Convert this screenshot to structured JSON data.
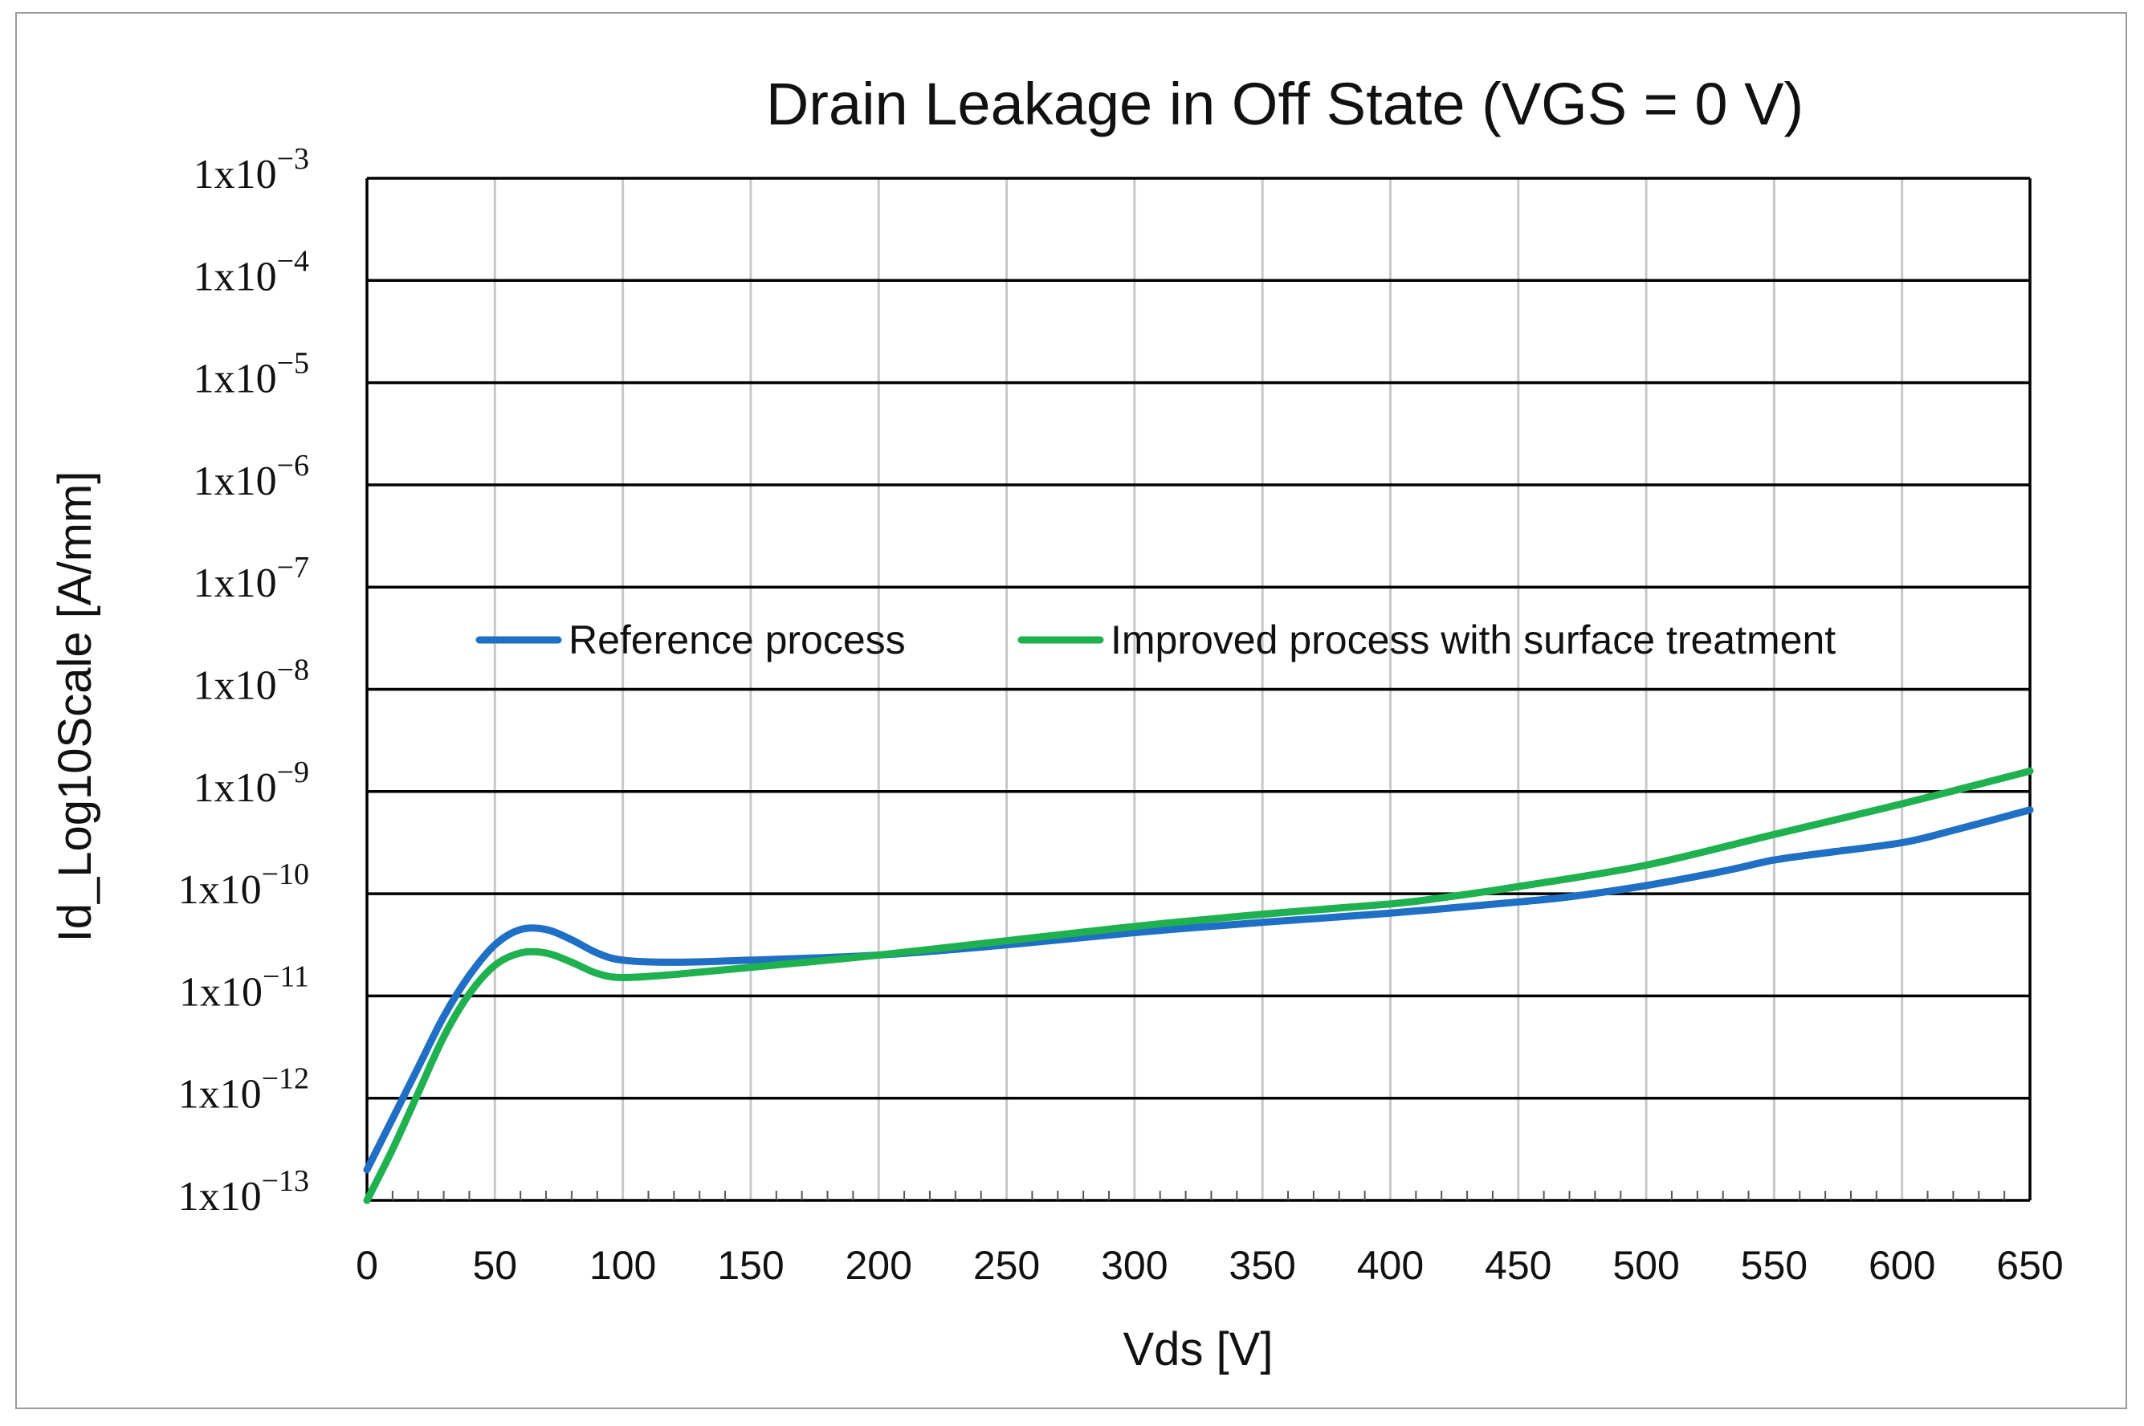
{
  "chart_data": {
    "type": "line",
    "title": "Drain Leakage in Off State (VGS = 0 V)",
    "xlabel": "Vds [V]",
    "ylabel": "Id_Log10Scale [A/mm]",
    "y_scale": "log10",
    "xlim": [
      0,
      650
    ],
    "ylim_exponent": [
      -13,
      -3
    ],
    "x_ticks": [
      0,
      50,
      100,
      150,
      200,
      250,
      300,
      350,
      400,
      450,
      500,
      550,
      600,
      650
    ],
    "y_tick_labels": [
      {
        "base": "1x10",
        "exp": "−13",
        "value_exponent": -13
      },
      {
        "base": "1x10",
        "exp": "−12",
        "value_exponent": -12
      },
      {
        "base": "1x10",
        "exp": "−11",
        "value_exponent": -11
      },
      {
        "base": "1x10",
        "exp": "−10",
        "value_exponent": -10
      },
      {
        "base": "1x10",
        "exp": "−9",
        "value_exponent": -9
      },
      {
        "base": "1x10",
        "exp": "−8",
        "value_exponent": -8
      },
      {
        "base": "1x10",
        "exp": "−7",
        "value_exponent": -7
      },
      {
        "base": "1x10",
        "exp": "−6",
        "value_exponent": -6
      },
      {
        "base": "1x10",
        "exp": "−5",
        "value_exponent": -5
      },
      {
        "base": "1x10",
        "exp": "−4",
        "value_exponent": -4
      },
      {
        "base": "1x10",
        "exp": "−3",
        "value_exponent": -3
      }
    ],
    "grid": {
      "major_y": true,
      "major_x": true
    },
    "legend_position": "inside-middle",
    "series": [
      {
        "name": "Reference process",
        "color": "#1f6fc5",
        "x": [
          0,
          10,
          20,
          30,
          40,
          50,
          60,
          70,
          80,
          90,
          100,
          120,
          150,
          200,
          250,
          300,
          350,
          400,
          450,
          470,
          500,
          530,
          550,
          570,
          600,
          620,
          650
        ],
        "log10_y": [
          -12.7,
          -12.2,
          -11.7,
          -11.2,
          -10.8,
          -10.5,
          -10.35,
          -10.35,
          -10.45,
          -10.58,
          -10.65,
          -10.67,
          -10.65,
          -10.6,
          -10.5,
          -10.38,
          -10.28,
          -10.19,
          -10.08,
          -10.03,
          -9.92,
          -9.78,
          -9.67,
          -9.6,
          -9.5,
          -9.38,
          -9.18
        ]
      },
      {
        "name": "Improved process with surface treatment",
        "color": "#1fb14f",
        "x": [
          0,
          10,
          20,
          30,
          40,
          50,
          60,
          70,
          80,
          90,
          100,
          120,
          150,
          200,
          250,
          300,
          350,
          400,
          420,
          450,
          500,
          550,
          600,
          650
        ],
        "log10_y": [
          -13.0,
          -12.5,
          -11.95,
          -11.4,
          -10.98,
          -10.7,
          -10.58,
          -10.58,
          -10.67,
          -10.78,
          -10.82,
          -10.79,
          -10.72,
          -10.6,
          -10.46,
          -10.32,
          -10.2,
          -10.1,
          -10.04,
          -9.93,
          -9.72,
          -9.42,
          -9.12,
          -8.8
        ]
      }
    ]
  }
}
